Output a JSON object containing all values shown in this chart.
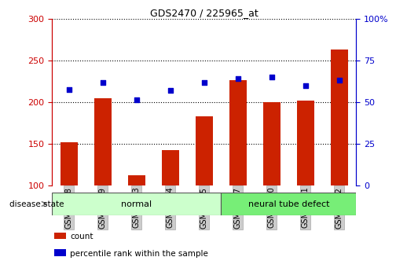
{
  "title": "GDS2470 / 225965_at",
  "samples": [
    "GSM94598",
    "GSM94599",
    "GSM94603",
    "GSM94604",
    "GSM94605",
    "GSM94597",
    "GSM94600",
    "GSM94601",
    "GSM94602"
  ],
  "counts": [
    152,
    205,
    112,
    143,
    183,
    226,
    200,
    202,
    263
  ],
  "percentiles": [
    215,
    224,
    203,
    214,
    224,
    228,
    230,
    220,
    226
  ],
  "groups": [
    {
      "label": "normal",
      "start": 0,
      "end": 5,
      "color": "#ccffcc"
    },
    {
      "label": "neural tube defect",
      "start": 5,
      "end": 9,
      "color": "#77ee77"
    }
  ],
  "left_ylim": [
    100,
    300
  ],
  "left_yticks": [
    100,
    150,
    200,
    250,
    300
  ],
  "right_ylim": [
    0,
    100
  ],
  "right_yticks": [
    0,
    25,
    50,
    75,
    100
  ],
  "right_yticklabels": [
    "0",
    "25",
    "50",
    "75",
    "100%"
  ],
  "left_ycolor": "#cc0000",
  "right_ycolor": "#0000cc",
  "bar_color": "#cc2200",
  "dot_color": "#0000cc",
  "grid_color": "#000000",
  "tick_bg_color": "#cccccc",
  "legend_count_color": "#cc2200",
  "legend_pct_color": "#0000cc",
  "disease_state_label": "disease state",
  "legend_count_label": "count",
  "legend_pct_label": "percentile rank within the sample"
}
